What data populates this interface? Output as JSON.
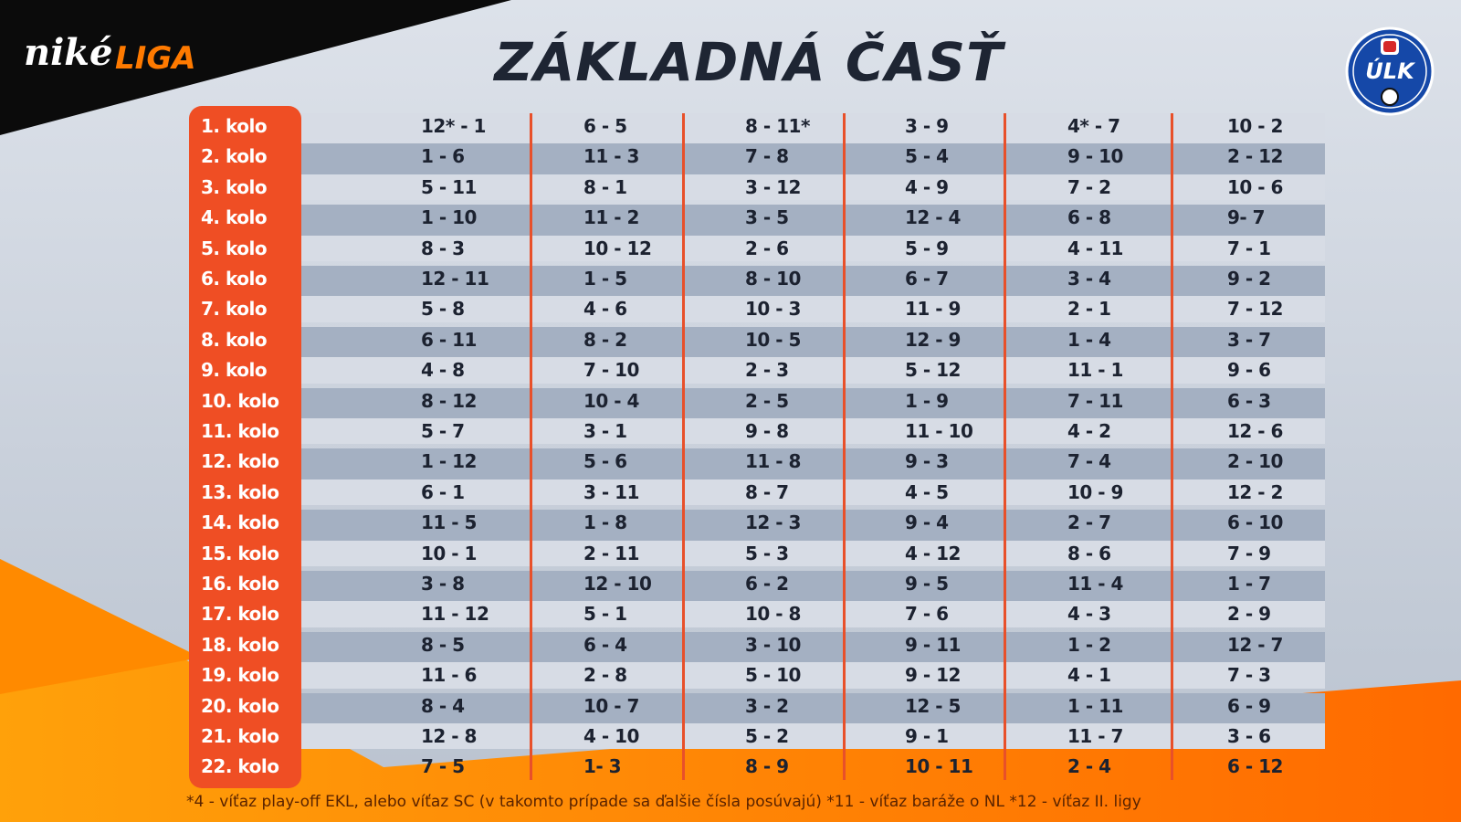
{
  "header": {
    "brand": {
      "word1": "niké",
      "word2": "LIGA"
    },
    "title": "ZÁKLADNÁ ČASŤ",
    "logo": "ÚLK"
  },
  "table": {
    "rows": [
      [
        "1. kolo",
        "12* - 1",
        "6 - 5",
        "8 - 11*",
        "3 - 9",
        "4* - 7",
        "10 - 2"
      ],
      [
        "2. kolo",
        "1 - 6",
        "11 - 3",
        "7 - 8",
        "5 - 4",
        "9 - 10",
        "2 - 12"
      ],
      [
        "3. kolo",
        "5 - 11",
        "8 - 1",
        "3 - 12",
        "4 - 9",
        "7 - 2",
        "10 - 6"
      ],
      [
        "4. kolo",
        "1 - 10",
        "11 - 2",
        "3 - 5",
        "12 - 4",
        "6 - 8",
        "9- 7"
      ],
      [
        "5. kolo",
        "8 - 3",
        "10 - 12",
        "2 - 6",
        "5 - 9",
        "4 - 11",
        "7 - 1"
      ],
      [
        "6. kolo",
        "12 - 11",
        "1 - 5",
        "8 - 10",
        "6 - 7",
        "3 - 4",
        "9 - 2"
      ],
      [
        "7. kolo",
        "5 - 8",
        "4 - 6",
        "10 - 3",
        "11 - 9",
        "2 - 1",
        "7 - 12"
      ],
      [
        "8. kolo",
        "6 - 11",
        "8 - 2",
        "10 - 5",
        "12 - 9",
        "1 - 4",
        "3 - 7"
      ],
      [
        "9. kolo",
        "4 - 8",
        "7 - 10",
        "2 - 3",
        "5 - 12",
        "11 - 1",
        "9 - 6"
      ],
      [
        "10. kolo",
        "8 - 12",
        "10 - 4",
        "2 - 5",
        "1 - 9",
        "7 - 11",
        "6 - 3"
      ],
      [
        "11. kolo",
        "5 - 7",
        "3 - 1",
        "9 - 8",
        "11 - 10",
        "4 - 2",
        "12 - 6"
      ],
      [
        "12. kolo",
        "1 - 12",
        "5 - 6",
        "11 - 8",
        "9 - 3",
        "7 - 4",
        "2 - 10"
      ],
      [
        "13. kolo",
        "6 - 1",
        "3 - 11",
        "8 - 7",
        "4 - 5",
        "10 - 9",
        "12 - 2"
      ],
      [
        "14. kolo",
        "11 - 5",
        "1 - 8",
        "12 - 3",
        "9 - 4",
        "2 - 7",
        "6 - 10"
      ],
      [
        "15. kolo",
        "10 - 1",
        "2 - 11",
        "5 - 3",
        "4 - 12",
        "8 - 6",
        "7 - 9"
      ],
      [
        "16. kolo",
        "3 - 8",
        "12 - 10",
        "6 - 2",
        "9 - 5",
        "11 - 4",
        "1 - 7"
      ],
      [
        "17. kolo",
        "11 - 12",
        "5 - 1",
        "10 - 8",
        "7 - 6",
        "4 - 3",
        "2 - 9"
      ],
      [
        "18. kolo",
        "8 - 5",
        "6 - 4",
        "3 - 10",
        "9 - 11",
        "1 - 2",
        "12 - 7"
      ],
      [
        "19. kolo",
        "11 - 6",
        "2 - 8",
        "5 - 10",
        "9 - 12",
        "4 - 1",
        "7 - 3"
      ],
      [
        "20. kolo",
        "8 - 4",
        "10 - 7",
        "3 - 2",
        "12 - 5",
        "1 - 11",
        "6 - 9"
      ],
      [
        "21. kolo",
        "12 - 8",
        "4 - 10",
        "5 - 2",
        "9 - 1",
        "11 - 7",
        "3 - 6"
      ],
      [
        "22. kolo",
        "7 - 5",
        "1- 3",
        "8 - 9",
        "10 - 11",
        "2 - 4",
        "6 - 12"
      ]
    ]
  },
  "footnote": "*4 - víťaz play-off EKL, alebo víťaz SC (v takomto prípade sa ďalšie čísla posúvajú) *11 - víťaz baráže o NL *12 - víťaz II. ligy"
}
